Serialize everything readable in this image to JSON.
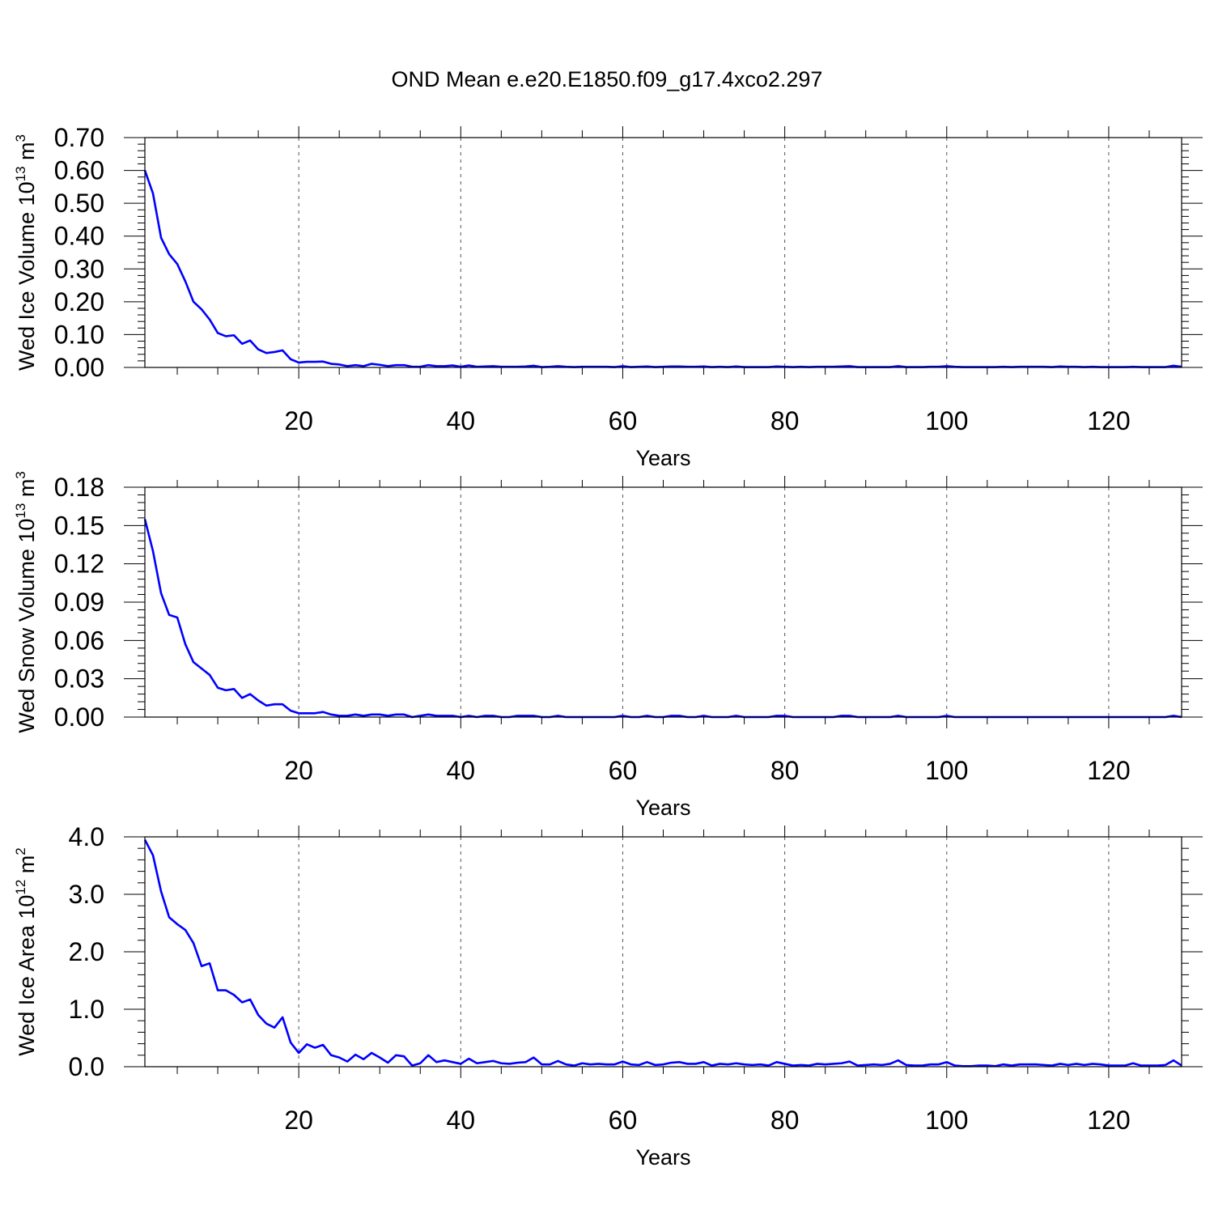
{
  "title": "OND Mean e.e20.E1850.f09_g17.4xco2.297",
  "chart_data": [
    {
      "type": "line",
      "xlabel": "Years",
      "ylabel": {
        "main": "Wed Ice Volume 10",
        "sup": "13",
        "unit": " m",
        "unit_sup": "3"
      },
      "xlim": [
        1,
        129
      ],
      "ylim": [
        0,
        0.7
      ],
      "xticks": [
        20,
        40,
        60,
        80,
        100,
        120
      ],
      "xtick_labels": [
        "20",
        "40",
        "60",
        "80",
        "100",
        "120"
      ],
      "yticks": [
        0,
        0.1,
        0.2,
        0.3,
        0.4,
        0.5,
        0.6,
        0.7
      ],
      "ytick_labels": [
        "0.00",
        "0.10",
        "0.20",
        "0.30",
        "0.40",
        "0.50",
        "0.60",
        "0.70"
      ],
      "grid": "vertical dashed at major x ticks",
      "series": [
        {
          "color": "#0000ff",
          "x_start": 1,
          "values": [
            0.6,
            0.53,
            0.395,
            0.345,
            0.315,
            0.262,
            0.2,
            0.177,
            0.146,
            0.105,
            0.095,
            0.098,
            0.072,
            0.082,
            0.055,
            0.044,
            0.047,
            0.052,
            0.025,
            0.015,
            0.017,
            0.017,
            0.018,
            0.011,
            0.009,
            0.004,
            0.007,
            0.004,
            0.011,
            0.008,
            0.004,
            0.007,
            0.007,
            0.002,
            0.002,
            0.007,
            0.004,
            0.004,
            0.006,
            0.002,
            0.006,
            0.002,
            0.003,
            0.004,
            0.002,
            0.002,
            0.002,
            0.003,
            0.005,
            0.001,
            0.002,
            0.004,
            0.002,
            0.001,
            0.002,
            0.002,
            0.002,
            0.002,
            0.001,
            0.004,
            0.001,
            0.002,
            0.003,
            0.001,
            0.002,
            0.003,
            0.003,
            0.002,
            0.002,
            0.003,
            0.001,
            0.002,
            0.001,
            0.003,
            0.001,
            0.001,
            0.001,
            0.001,
            0.003,
            0.002,
            0.001,
            0.002,
            0.001,
            0.002,
            0.002,
            0.002,
            0.003,
            0.004,
            0.001,
            0.001,
            0.001,
            0.001,
            0.001,
            0.004,
            0.001,
            0.001,
            0.001,
            0.002,
            0.002,
            0.004,
            0.002,
            0.001,
            0.001,
            0.001,
            0.001,
            0.001,
            0.002,
            0.001,
            0.002,
            0.002,
            0.002,
            0.002,
            0.001,
            0.003,
            0.002,
            0.002,
            0.001,
            0.002,
            0.001,
            0.001,
            0.001,
            0.001,
            0.002,
            0.001,
            0.001,
            0.001,
            0.001,
            0.005,
            0.002
          ]
        }
      ]
    },
    {
      "type": "line",
      "xlabel": "Years",
      "ylabel": {
        "main": "Wed Snow Volume 10",
        "sup": "13",
        "unit": " m",
        "unit_sup": "3"
      },
      "xlim": [
        1,
        129
      ],
      "ylim": [
        0,
        0.18
      ],
      "xticks": [
        20,
        40,
        60,
        80,
        100,
        120
      ],
      "xtick_labels": [
        "20",
        "40",
        "60",
        "80",
        "100",
        "120"
      ],
      "yticks": [
        0,
        0.03,
        0.06,
        0.09,
        0.12,
        0.15,
        0.18
      ],
      "ytick_labels": [
        "0.00",
        "0.03",
        "0.06",
        "0.09",
        "0.12",
        "0.15",
        "0.18"
      ],
      "grid": "vertical dashed at major x ticks",
      "series": [
        {
          "color": "#0000ff",
          "x_start": 1,
          "values": [
            0.155,
            0.13,
            0.097,
            0.08,
            0.078,
            0.057,
            0.043,
            0.038,
            0.033,
            0.023,
            0.021,
            0.022,
            0.015,
            0.018,
            0.013,
            0.009,
            0.01,
            0.01,
            0.005,
            0.003,
            0.003,
            0.003,
            0.004,
            0.002,
            0.001,
            0.001,
            0.002,
            0.001,
            0.002,
            0.002,
            0.001,
            0.002,
            0.002,
            0.0,
            0.001,
            0.002,
            0.001,
            0.001,
            0.001,
            0.0,
            0.001,
            0.0,
            0.001,
            0.001,
            0.0,
            0.0,
            0.001,
            0.001,
            0.001,
            0.0,
            0.0,
            0.001,
            0.0,
            0.0,
            0.0,
            0.0,
            0.0,
            0.0,
            0.0,
            0.001,
            0.0,
            0.0,
            0.001,
            0.0,
            0.0,
            0.001,
            0.001,
            0.0,
            0.0,
            0.001,
            0.0,
            0.0,
            0.0,
            0.001,
            0.0,
            0.0,
            0.0,
            0.0,
            0.001,
            0.001,
            0.0,
            0.0,
            0.0,
            0.0,
            0.0,
            0.0,
            0.001,
            0.001,
            0.0,
            0.0,
            0.0,
            0.0,
            0.0,
            0.001,
            0.0,
            0.0,
            0.0,
            0.0,
            0.0,
            0.001,
            0.0,
            0.0,
            0.0,
            0.0,
            0.0,
            0.0,
            0.0,
            0.0,
            0.0,
            0.0,
            0.0,
            0.0,
            0.0,
            0.0,
            0.0,
            0.0,
            0.0,
            0.0,
            0.0,
            0.0,
            0.0,
            0.0,
            0.0,
            0.0,
            0.0,
            0.0,
            0.0,
            0.001,
            0.0
          ]
        }
      ]
    },
    {
      "type": "line",
      "xlabel": "Years",
      "ylabel": {
        "main": "Wed Ice Area 10",
        "sup": "12",
        "unit": " m",
        "unit_sup": "2"
      },
      "xlim": [
        1,
        129
      ],
      "ylim": [
        0,
        4.0
      ],
      "xticks": [
        20,
        40,
        60,
        80,
        100,
        120
      ],
      "xtick_labels": [
        "20",
        "40",
        "60",
        "80",
        "100",
        "120"
      ],
      "yticks": [
        0,
        1,
        2,
        3,
        4
      ],
      "ytick_labels": [
        "0.0",
        "1.0",
        "2.0",
        "3.0",
        "4.0"
      ],
      "grid": "vertical dashed at major x ticks",
      "series": [
        {
          "color": "#0000ff",
          "x_start": 1,
          "values": [
            3.95,
            3.68,
            3.05,
            2.6,
            2.48,
            2.38,
            2.15,
            1.75,
            1.8,
            1.33,
            1.33,
            1.25,
            1.12,
            1.17,
            0.9,
            0.75,
            0.68,
            0.86,
            0.42,
            0.24,
            0.39,
            0.33,
            0.38,
            0.2,
            0.16,
            0.09,
            0.21,
            0.13,
            0.24,
            0.16,
            0.07,
            0.2,
            0.18,
            0.02,
            0.06,
            0.2,
            0.08,
            0.11,
            0.08,
            0.05,
            0.14,
            0.06,
            0.08,
            0.1,
            0.06,
            0.05,
            0.07,
            0.08,
            0.16,
            0.04,
            0.04,
            0.1,
            0.04,
            0.02,
            0.06,
            0.04,
            0.05,
            0.04,
            0.04,
            0.09,
            0.04,
            0.03,
            0.08,
            0.03,
            0.04,
            0.07,
            0.08,
            0.05,
            0.05,
            0.08,
            0.02,
            0.05,
            0.04,
            0.06,
            0.04,
            0.03,
            0.04,
            0.02,
            0.08,
            0.05,
            0.02,
            0.03,
            0.02,
            0.05,
            0.04,
            0.05,
            0.06,
            0.09,
            0.02,
            0.03,
            0.04,
            0.03,
            0.05,
            0.11,
            0.03,
            0.02,
            0.02,
            0.04,
            0.04,
            0.08,
            0.02,
            0.01,
            0.01,
            0.02,
            0.02,
            0.01,
            0.04,
            0.02,
            0.04,
            0.04,
            0.04,
            0.03,
            0.02,
            0.05,
            0.03,
            0.05,
            0.03,
            0.05,
            0.04,
            0.02,
            0.02,
            0.02,
            0.06,
            0.02,
            0.02,
            0.02,
            0.03,
            0.11,
            0.02
          ]
        }
      ]
    }
  ]
}
